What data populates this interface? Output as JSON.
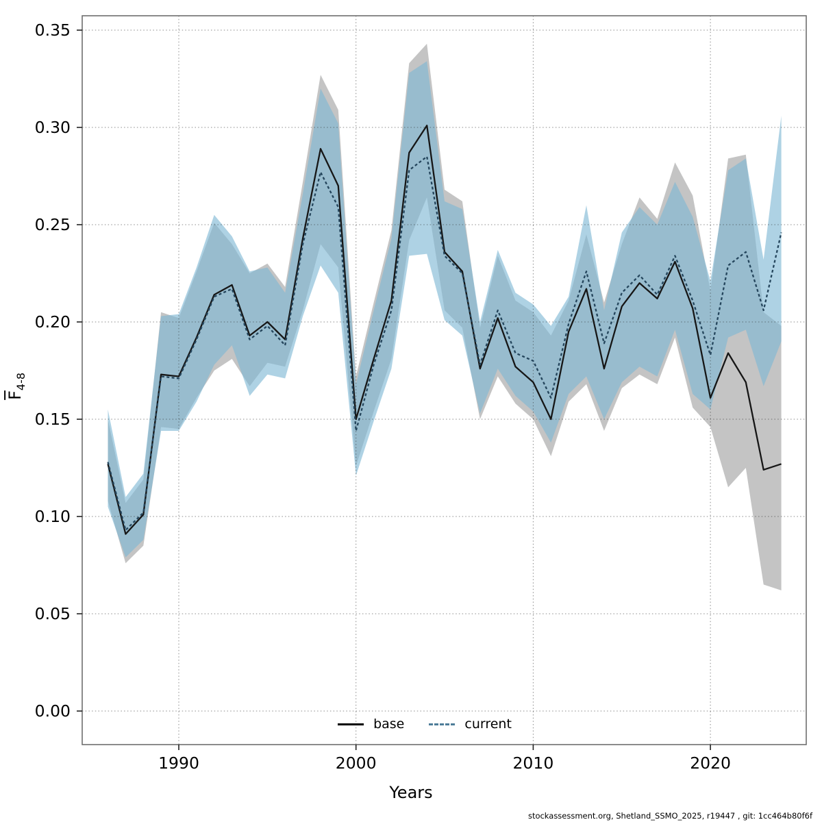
{
  "page": {
    "background": "#ffffff"
  },
  "footer": {
    "credit": "stockassessment.org, Shetland_SSMO_2025, r19447 , git: 1cc464b80f6f"
  },
  "axes": {
    "x_label": "Years",
    "y_label_main": "F",
    "y_label_sub": "4-8",
    "x_ticks": [
      1990,
      2000,
      2010,
      2020
    ],
    "y_ticks": [
      0.0,
      0.05,
      0.1,
      0.15,
      0.2,
      0.25,
      0.3,
      0.35
    ]
  },
  "legend": {
    "base_label": "base",
    "current_label": "current"
  },
  "colors": {
    "base_band": "#c4c4c4",
    "current_band": "rgba(125,182,212,0.62)",
    "base_line": "#161616",
    "current_line": "#24455c",
    "legend_current": "#4e7d99",
    "grid": "rgba(40,40,40,0.55)",
    "frame": "#6e6e6e",
    "tick": "#222222"
  },
  "chart_data": {
    "type": "line",
    "title": "",
    "xlabel": "Years",
    "ylabel": "F (bar) 4-8 (mean fishing mortality ages 4-8)",
    "xlim": [
      1984.9,
      2025.9
    ],
    "ylim": [
      -0.017,
      0.357
    ],
    "grid": true,
    "legend_position": "bottom-center-inside",
    "x": [
      1986,
      1987,
      1988,
      1989,
      1990,
      1991,
      1992,
      1993,
      1994,
      1995,
      1996,
      1997,
      1998,
      1999,
      2000,
      2001,
      2002,
      2003,
      2004,
      2005,
      2006,
      2007,
      2008,
      2009,
      2010,
      2011,
      2012,
      2013,
      2014,
      2015,
      2016,
      2017,
      2018,
      2019,
      2020,
      2021,
      2022,
      2023,
      2024
    ],
    "series": [
      {
        "name": "base",
        "style": "solid",
        "values": [
          0.127,
          0.091,
          0.101,
          0.173,
          0.172,
          0.192,
          0.214,
          0.219,
          0.193,
          0.2,
          0.191,
          0.243,
          0.289,
          0.27,
          0.15,
          0.181,
          0.211,
          0.287,
          0.301,
          0.236,
          0.226,
          0.176,
          0.202,
          0.177,
          0.169,
          0.15,
          0.195,
          0.217,
          0.176,
          0.208,
          0.22,
          0.212,
          0.231,
          0.207,
          0.161,
          0.184,
          0.169,
          0.124,
          0.127
        ],
        "lower": [
          0.108,
          0.076,
          0.085,
          0.146,
          0.145,
          0.161,
          0.175,
          0.181,
          0.167,
          0.179,
          0.177,
          0.206,
          0.24,
          0.228,
          0.126,
          0.154,
          0.181,
          0.242,
          0.264,
          0.206,
          0.197,
          0.15,
          0.172,
          0.158,
          0.15,
          0.131,
          0.159,
          0.168,
          0.144,
          0.166,
          0.173,
          0.168,
          0.192,
          0.156,
          0.146,
          0.115,
          0.125,
          0.065,
          0.062
        ],
        "upper": [
          0.15,
          0.107,
          0.119,
          0.205,
          0.202,
          0.226,
          0.251,
          0.24,
          0.225,
          0.23,
          0.218,
          0.272,
          0.327,
          0.309,
          0.172,
          0.21,
          0.247,
          0.333,
          0.343,
          0.268,
          0.262,
          0.197,
          0.234,
          0.211,
          0.205,
          0.193,
          0.211,
          0.245,
          0.21,
          0.24,
          0.264,
          0.253,
          0.282,
          0.265,
          0.216,
          0.284,
          0.286,
          0.205,
          0.198
        ]
      },
      {
        "name": "current",
        "style": "dashed",
        "values": [
          0.128,
          0.093,
          0.102,
          0.172,
          0.171,
          0.191,
          0.213,
          0.217,
          0.191,
          0.198,
          0.188,
          0.24,
          0.277,
          0.259,
          0.144,
          0.178,
          0.206,
          0.278,
          0.285,
          0.234,
          0.225,
          0.178,
          0.206,
          0.184,
          0.18,
          0.161,
          0.199,
          0.226,
          0.189,
          0.215,
          0.224,
          0.214,
          0.234,
          0.211,
          0.183,
          0.229,
          0.236,
          0.206,
          0.246
        ],
        "lower": [
          0.105,
          0.079,
          0.088,
          0.144,
          0.144,
          0.159,
          0.178,
          0.188,
          0.162,
          0.173,
          0.171,
          0.203,
          0.229,
          0.215,
          0.121,
          0.149,
          0.176,
          0.234,
          0.235,
          0.201,
          0.193,
          0.153,
          0.176,
          0.162,
          0.154,
          0.138,
          0.163,
          0.172,
          0.15,
          0.169,
          0.177,
          0.172,
          0.196,
          0.163,
          0.155,
          0.192,
          0.196,
          0.167,
          0.19
        ],
        "upper": [
          0.155,
          0.11,
          0.122,
          0.203,
          0.204,
          0.228,
          0.255,
          0.244,
          0.226,
          0.228,
          0.215,
          0.266,
          0.32,
          0.302,
          0.168,
          0.206,
          0.243,
          0.328,
          0.334,
          0.262,
          0.258,
          0.2,
          0.237,
          0.215,
          0.209,
          0.198,
          0.213,
          0.26,
          0.206,
          0.246,
          0.259,
          0.25,
          0.272,
          0.254,
          0.221,
          0.278,
          0.284,
          0.232,
          0.306
        ]
      }
    ],
    "footer": "stockassessment.org, Shetland_SSMO_2025, r19447 , git: 1cc464b80f6f"
  }
}
